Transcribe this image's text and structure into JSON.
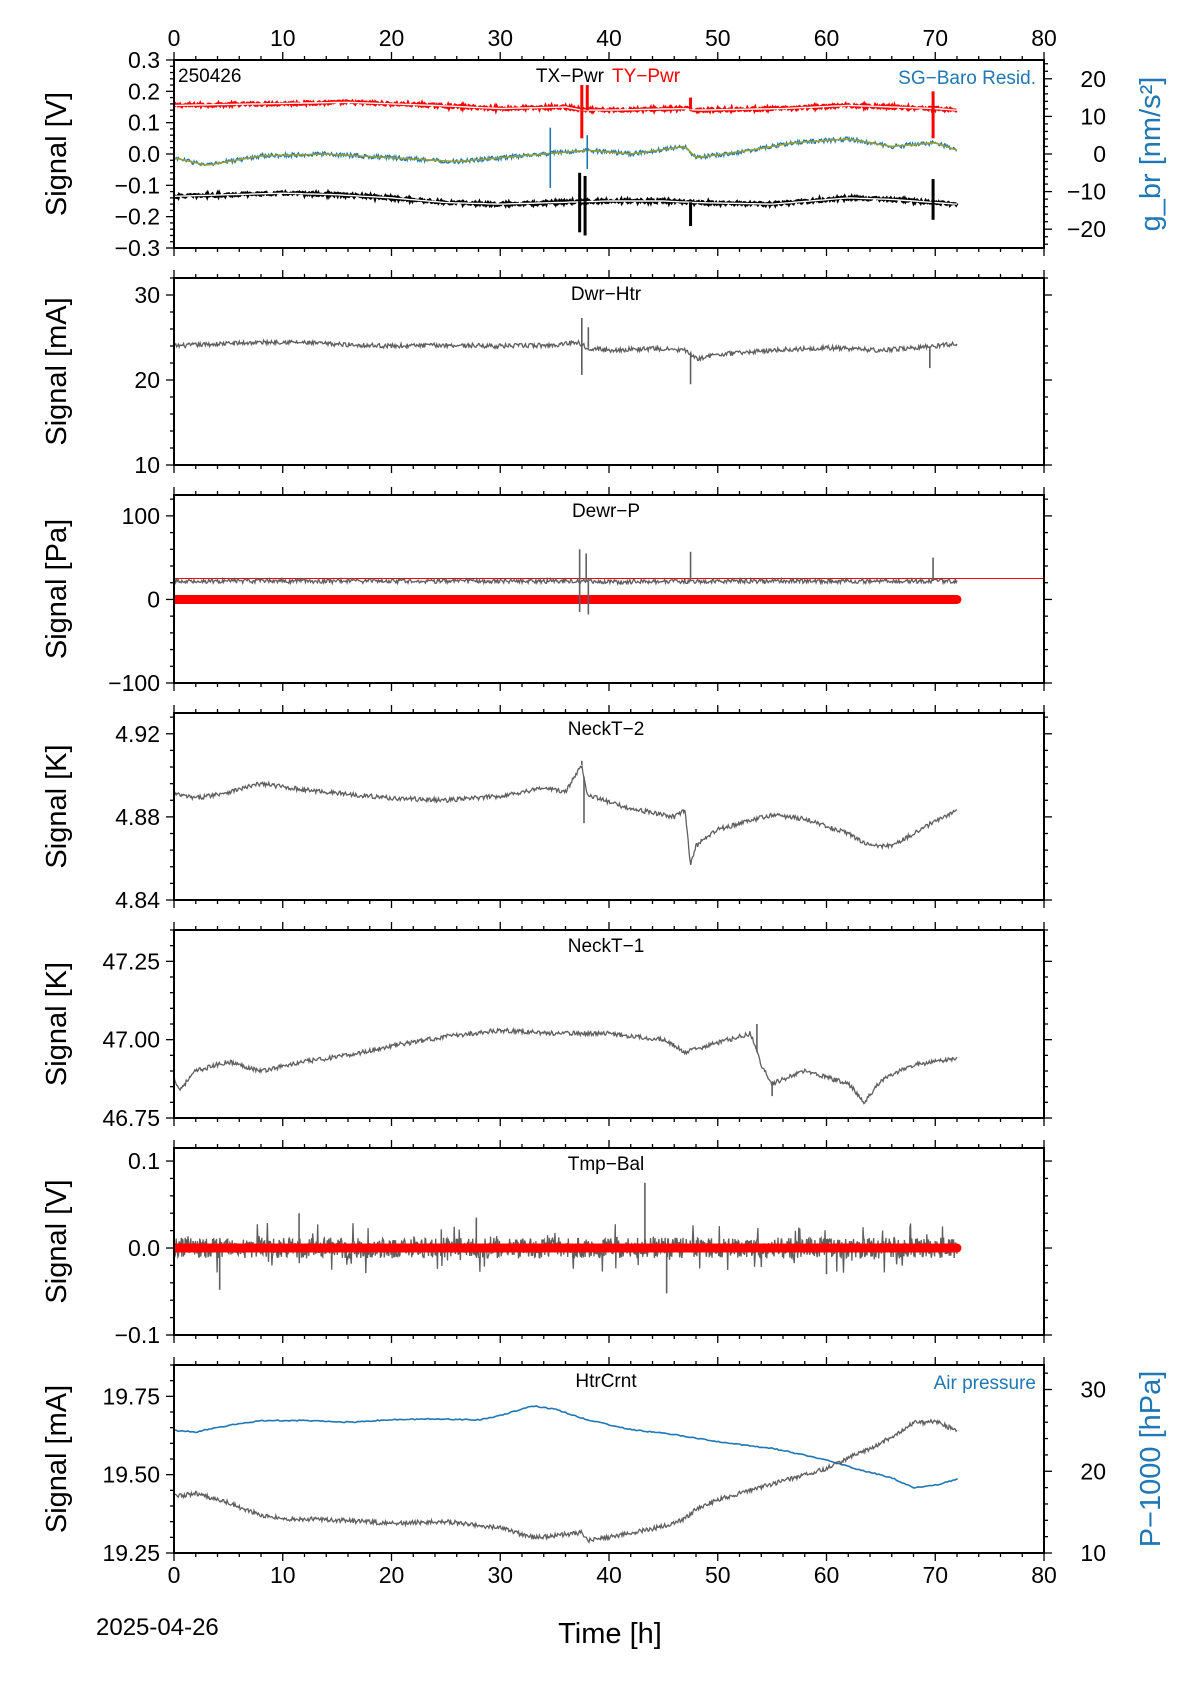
{
  "colors": {
    "grey": "#5f5f5f",
    "red": "#ff0000",
    "blue": "#1f77b4",
    "black": "#000000",
    "olive": "#9aa02a",
    "white": "#ffffff"
  },
  "footer": {
    "date": "2025-04-26"
  },
  "chart_data": [
    {
      "type": "line",
      "panel_id": "p1",
      "xlabel": "",
      "ylabel": "Signal [V]",
      "y2label": "g_br [nm/s²]",
      "xlim": [
        0,
        80
      ],
      "ylim": [
        -0.3,
        0.3
      ],
      "y2lim": [
        -25,
        25
      ],
      "xticks": [
        0,
        10,
        20,
        30,
        40,
        50,
        60,
        70,
        80
      ],
      "top_ticks": [
        0,
        10,
        20,
        30,
        40,
        50,
        60,
        70,
        80
      ],
      "yticks": [
        -0.3,
        -0.2,
        -0.1,
        0.0,
        0.1,
        0.2,
        0.3
      ],
      "ytick_labels": [
        "−0.3",
        "−0.2",
        "−0.1",
        "0.0",
        "0.1",
        "0.2",
        "0.3"
      ],
      "y2ticks": [
        -20,
        -10,
        0,
        10,
        20
      ],
      "y2tick_labels": [
        "−20",
        "−10",
        "0",
        "10",
        "20"
      ],
      "texts": {
        "left_label": "250426",
        "label_a": "TX−Pwr",
        "label_b": "TY−Pwr",
        "right_label": "SG−Baro Resid."
      },
      "series": [
        {
          "name": "TY−Pwr",
          "color": "red",
          "axis": "y",
          "style": "dots",
          "x": [
            0,
            8,
            16,
            24,
            30,
            36,
            37.5,
            40,
            47,
            48,
            56,
            62,
            70,
            72
          ],
          "y": [
            0.155,
            0.16,
            0.165,
            0.155,
            0.145,
            0.15,
            0.14,
            0.14,
            0.145,
            0.14,
            0.145,
            0.155,
            0.145,
            0.14
          ],
          "spikes": [
            [
              37.5,
              0.22
            ],
            [
              37.5,
              0.05
            ],
            [
              38,
              0.22
            ],
            [
              47.5,
              0.18
            ],
            [
              69.8,
              0.2
            ],
            [
              69.8,
              0.05
            ]
          ]
        },
        {
          "name": "TX−Pwr",
          "color": "black",
          "axis": "y",
          "style": "dots",
          "x": [
            0,
            5,
            10,
            15,
            20,
            25,
            30,
            35,
            40,
            45,
            48,
            55,
            62,
            66,
            72
          ],
          "y": [
            -0.135,
            -0.13,
            -0.125,
            -0.13,
            -0.14,
            -0.155,
            -0.16,
            -0.155,
            -0.15,
            -0.15,
            -0.155,
            -0.16,
            -0.14,
            -0.145,
            -0.16
          ],
          "spikes": [
            [
              37.3,
              -0.06
            ],
            [
              37.3,
              -0.25
            ],
            [
              37.8,
              -0.07
            ],
            [
              37.8,
              -0.26
            ],
            [
              47.5,
              -0.23
            ],
            [
              69.8,
              -0.08
            ],
            [
              69.8,
              -0.21
            ]
          ]
        },
        {
          "name": "SG−Baro Resid.",
          "color": "blue",
          "axis": "y2",
          "style": "band",
          "x": [
            0,
            3,
            8,
            14,
            20,
            26,
            30,
            34,
            38,
            42,
            47,
            48,
            53,
            57,
            62,
            66,
            70,
            72
          ],
          "y": [
            -1,
            -3,
            -0.5,
            0,
            -1,
            -2,
            -1,
            0,
            1,
            0,
            2,
            -1,
            1,
            3,
            4,
            2,
            3,
            1
          ],
          "spikes": [
            [
              34.6,
              7
            ],
            [
              34.6,
              -9
            ],
            [
              38,
              5
            ],
            [
              38,
              -4
            ]
          ]
        }
      ]
    },
    {
      "type": "line",
      "panel_id": "p2",
      "xlabel": "",
      "ylabel": "Signal [mA]",
      "xlim": [
        0,
        80
      ],
      "ylim": [
        10,
        32
      ],
      "xticks": [
        0,
        10,
        20,
        30,
        40,
        50,
        60,
        70,
        80
      ],
      "yticks": [
        10,
        20,
        30
      ],
      "ytick_labels": [
        "10",
        "20",
        "30"
      ],
      "texts": {
        "name": "Dwr−Htr"
      },
      "series": [
        {
          "name": "Dwr−Htr",
          "color": "grey",
          "axis": "y",
          "style": "noisy",
          "x": [
            0,
            5,
            10,
            15,
            20,
            25,
            30,
            35,
            37,
            38,
            40,
            44,
            47,
            48,
            50,
            55,
            60,
            65,
            70,
            72
          ],
          "y": [
            24,
            24.3,
            24.5,
            24.2,
            24,
            24.1,
            24,
            24.1,
            24.5,
            23.8,
            23.5,
            23.7,
            23.5,
            22.5,
            23,
            23.5,
            23.8,
            23.5,
            24,
            24.3
          ],
          "spikes": [
            [
              37.5,
              27.3
            ],
            [
              37.5,
              20.6
            ],
            [
              38.1,
              26.2
            ],
            [
              47.5,
              19.5
            ],
            [
              69.5,
              21.4
            ]
          ]
        }
      ]
    },
    {
      "type": "line",
      "panel_id": "p3",
      "xlabel": "",
      "ylabel": "Signal [Pa]",
      "xlim": [
        0,
        80
      ],
      "ylim": [
        -100,
        125
      ],
      "xticks": [
        0,
        10,
        20,
        30,
        40,
        50,
        60,
        70,
        80
      ],
      "yticks": [
        -100,
        0,
        100
      ],
      "ytick_labels": [
        "−100",
        "0",
        "100"
      ],
      "texts": {
        "name": "Dewr−P"
      },
      "series": [
        {
          "name": "threshold",
          "color": "red",
          "axis": "y",
          "style": "thin",
          "x": [
            0,
            80
          ],
          "y": [
            25,
            25
          ]
        },
        {
          "name": "zero",
          "color": "red",
          "axis": "y",
          "style": "thick",
          "x": [
            0,
            72
          ],
          "y": [
            0,
            0
          ]
        },
        {
          "name": "Dewr−P",
          "color": "grey",
          "axis": "y",
          "style": "noisy",
          "x": [
            0,
            10,
            20,
            30,
            37,
            38,
            40,
            50,
            60,
            70,
            72
          ],
          "y": [
            22,
            22,
            22,
            22,
            22,
            22,
            21,
            22,
            22,
            22,
            22
          ],
          "spikes": [
            [
              37.3,
              60
            ],
            [
              37.3,
              -15
            ],
            [
              37.9,
              55
            ],
            [
              38.1,
              -18
            ],
            [
              47.5,
              57
            ],
            [
              69.8,
              50
            ]
          ]
        }
      ]
    },
    {
      "type": "line",
      "panel_id": "p4",
      "xlabel": "",
      "ylabel": "Signal [K]",
      "xlim": [
        0,
        80
      ],
      "ylim": [
        4.84,
        4.93
      ],
      "xticks": [
        0,
        10,
        20,
        30,
        40,
        50,
        60,
        70,
        80
      ],
      "yticks": [
        4.84,
        4.88,
        4.92
      ],
      "ytick_labels": [
        "4.84",
        "4.88",
        "4.92"
      ],
      "texts": {
        "name": "NeckT−2"
      },
      "series": [
        {
          "name": "NeckT−2",
          "color": "grey",
          "axis": "y",
          "style": "noisy",
          "x": [
            0,
            2,
            5,
            8,
            12,
            16,
            20,
            25,
            30,
            34,
            36,
            37.5,
            38,
            40,
            42,
            44,
            46,
            47,
            47.5,
            48,
            50,
            55,
            58,
            62,
            64,
            66,
            68,
            70,
            72
          ],
          "y": [
            4.891,
            4.889,
            4.892,
            4.896,
            4.893,
            4.891,
            4.889,
            4.888,
            4.89,
            4.894,
            4.892,
            4.905,
            4.891,
            4.887,
            4.884,
            4.882,
            4.88,
            4.883,
            4.857,
            4.866,
            4.874,
            4.881,
            4.879,
            4.872,
            4.866,
            4.866,
            4.872,
            4.878,
            4.883
          ],
          "spikes": [
            [
              37.5,
              4.907
            ],
            [
              37.7,
              4.877
            ]
          ]
        }
      ]
    },
    {
      "type": "line",
      "panel_id": "p5",
      "xlabel": "",
      "ylabel": "Signal [K]",
      "xlim": [
        0,
        80
      ],
      "ylim": [
        46.75,
        47.35
      ],
      "xticks": [
        0,
        10,
        20,
        30,
        40,
        50,
        60,
        70,
        80
      ],
      "yticks": [
        46.75,
        47.0,
        47.25
      ],
      "ytick_labels": [
        "46.75",
        "47.00",
        "47.25"
      ],
      "texts": {
        "name": "NeckT−1"
      },
      "series": [
        {
          "name": "NeckT−1",
          "color": "grey",
          "axis": "y",
          "style": "noisy",
          "x": [
            0,
            0.5,
            2,
            5,
            8,
            12,
            16,
            20,
            25,
            30,
            35,
            40,
            45,
            47,
            50,
            53,
            54,
            55,
            58,
            62,
            63.5,
            65,
            68,
            72
          ],
          "y": [
            46.88,
            46.84,
            46.9,
            46.93,
            46.9,
            46.93,
            46.95,
            46.98,
            47.01,
            47.03,
            47.02,
            47.02,
            47.0,
            46.96,
            46.99,
            47.02,
            46.92,
            46.86,
            46.9,
            46.86,
            46.8,
            46.87,
            46.92,
            46.94
          ],
          "spikes": [
            [
              53.6,
              47.05
            ],
            [
              55,
              46.82
            ]
          ]
        }
      ]
    },
    {
      "type": "line",
      "panel_id": "p6",
      "xlabel": "",
      "ylabel": "Signal [V]",
      "xlim": [
        0,
        80
      ],
      "ylim": [
        -0.1,
        0.115
      ],
      "xticks": [
        0,
        10,
        20,
        30,
        40,
        50,
        60,
        70,
        80
      ],
      "yticks": [
        -0.1,
        0.0,
        0.1
      ],
      "ytick_labels": [
        "−0.1",
        "0.0",
        "0.1"
      ],
      "texts": {
        "name": "Tmp−Bal"
      },
      "series": [
        {
          "name": "Tmp−Bal",
          "color": "grey",
          "axis": "y",
          "style": "noise",
          "x": [
            0,
            72
          ],
          "y": [
            0,
            0
          ],
          "amplitude": 0.012,
          "spikes": [
            [
              43.3,
              0.075
            ],
            [
              45.3,
              -0.052
            ],
            [
              4.2,
              -0.048
            ],
            [
              11.5,
              0.04
            ],
            [
              27.8,
              0.035
            ],
            [
              60,
              -0.03
            ]
          ]
        },
        {
          "name": "zero",
          "color": "red",
          "axis": "y",
          "style": "thick",
          "x": [
            0,
            72
          ],
          "y": [
            0,
            0
          ]
        }
      ]
    },
    {
      "type": "line",
      "panel_id": "p7",
      "xlabel": "Time [h]",
      "ylabel": "Signal [mA]",
      "y2label": "P−1000 [hPa]",
      "xlim": [
        0,
        80
      ],
      "ylim": [
        19.25,
        19.85
      ],
      "y2lim": [
        10,
        33
      ],
      "xticks": [
        0,
        10,
        20,
        30,
        40,
        50,
        60,
        70,
        80
      ],
      "xtick_labels": [
        "0",
        "10",
        "20",
        "30",
        "40",
        "50",
        "60",
        "70",
        "80"
      ],
      "yticks": [
        19.25,
        19.5,
        19.75
      ],
      "ytick_labels": [
        "19.25",
        "19.50",
        "19.75"
      ],
      "y2ticks": [
        10,
        20,
        30
      ],
      "y2tick_labels": [
        "10",
        "20",
        "30"
      ],
      "texts": {
        "name": "HtrCrnt",
        "right_label": "Air pressure"
      },
      "series": [
        {
          "name": "Air pressure",
          "color": "blue",
          "axis": "y2",
          "style": "line",
          "x": [
            0,
            2,
            5,
            8,
            12,
            16,
            20,
            24,
            28,
            30,
            33,
            35,
            38,
            42,
            46,
            50,
            55,
            60,
            63,
            66,
            68,
            70,
            72
          ],
          "y": [
            25,
            24.8,
            25.6,
            26.2,
            26.2,
            26,
            26.3,
            26.4,
            26.3,
            26.8,
            28,
            27.6,
            26.3,
            25.1,
            24.5,
            23.6,
            22.8,
            21.4,
            20.2,
            19.2,
            18,
            18.3,
            19
          ]
        },
        {
          "name": "HtrCrnt",
          "color": "grey",
          "axis": "y",
          "style": "noisy",
          "x": [
            0,
            2,
            5,
            8,
            10,
            15,
            20,
            25,
            30,
            33,
            35,
            37.5,
            38,
            40,
            45,
            47,
            48,
            50,
            55,
            60,
            65,
            68,
            70,
            72
          ],
          "y": [
            19.43,
            19.44,
            19.41,
            19.37,
            19.36,
            19.355,
            19.345,
            19.35,
            19.33,
            19.3,
            19.305,
            19.315,
            19.29,
            19.3,
            19.335,
            19.36,
            19.39,
            19.42,
            19.47,
            19.52,
            19.6,
            19.665,
            19.67,
            19.64
          ]
        }
      ]
    }
  ]
}
